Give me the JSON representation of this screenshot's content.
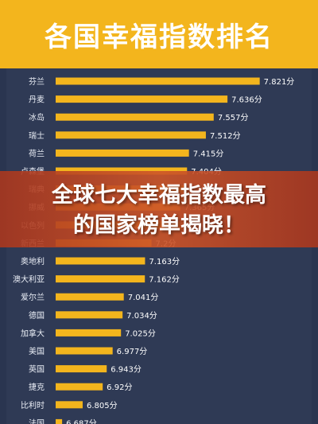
{
  "header": {
    "title": "各国幸福指数排名"
  },
  "banner": {
    "line1": "全球七大幸福指数最高",
    "line2": "的国家榜单揭晓！"
  },
  "colors": {
    "bar": "#f3b51d",
    "background": "#2f3a55",
    "title_bg": "#f3b51d"
  },
  "chart_data": {
    "type": "bar",
    "orientation": "horizontal",
    "title": "各国幸福指数排名",
    "value_suffix": "分",
    "categories": [
      "芬兰",
      "丹麦",
      "冰岛",
      "瑞士",
      "荷兰",
      "卢森堡",
      "瑞典",
      "挪威",
      "以色列",
      "新西兰",
      "奥地利",
      "澳大利亚",
      "爱尔兰",
      "德国",
      "加拿大",
      "美国",
      "英国",
      "捷克",
      "比利时",
      "法国"
    ],
    "values": [
      7.821,
      7.636,
      7.557,
      7.512,
      7.415,
      7.404,
      7.384,
      7.365,
      7.364,
      7.2,
      7.163,
      7.162,
      7.041,
      7.034,
      7.025,
      6.977,
      6.943,
      6.92,
      6.805,
      6.687
    ],
    "value_labels": [
      "7.821分",
      "7.636分",
      "7.557分",
      "7.512分",
      "7.415分",
      "7.404分",
      "7.384分",
      "7.365分",
      "7.364分",
      "7.2分",
      "7.163分",
      "7.162分",
      "7.041分",
      "7.034分",
      "7.025分",
      "6.977分",
      "6.943分",
      "6.92分",
      "6.805分",
      "6.687分"
    ],
    "xlim": [
      6.65,
      7.9
    ]
  }
}
